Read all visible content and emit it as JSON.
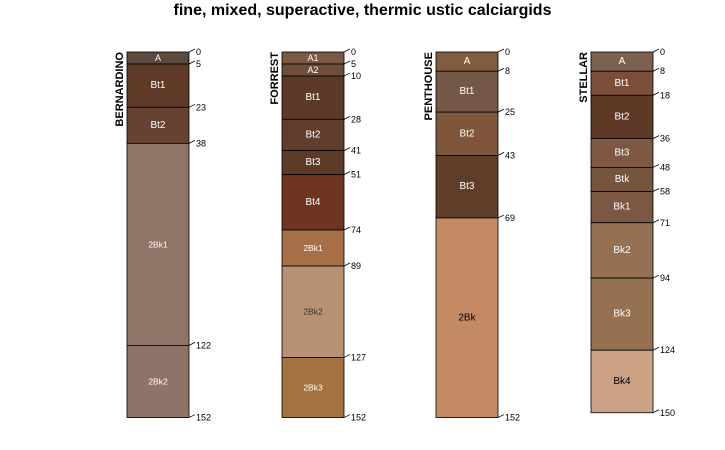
{
  "title": "fine, mixed, superactive, thermic ustic calciargids",
  "profiles": [
    {
      "name": "BERNARDINO",
      "horizons": [
        {
          "name": "A",
          "top": 0,
          "bottom": 5,
          "color": "#5B4A3E",
          "text_color": "#ffffff"
        },
        {
          "name": "Bt1",
          "top": 5,
          "bottom": 23,
          "color": "#5E3A27",
          "text_color": "#ffffff"
        },
        {
          "name": "Bt2",
          "top": 23,
          "bottom": 38,
          "color": "#654232",
          "text_color": "#ffffff"
        },
        {
          "name": "2Bk1",
          "top": 38,
          "bottom": 122,
          "color": "#907467",
          "text_color": "#ffffff"
        },
        {
          "name": "2Bk2",
          "top": 122,
          "bottom": 152,
          "color": "#8E7468",
          "text_color": "#ffffff"
        }
      ],
      "depth_labels": [
        "0",
        "5",
        "23",
        "38",
        "122",
        "152"
      ]
    },
    {
      "name": "FORREST",
      "horizons": [
        {
          "name": "A1",
          "top": 0,
          "bottom": 5,
          "color": "#7A5A44",
          "text_color": "#ffffff"
        },
        {
          "name": "A2",
          "top": 5,
          "bottom": 10,
          "color": "#6E4E3A",
          "text_color": "#ffffff"
        },
        {
          "name": "Bt1",
          "top": 10,
          "bottom": 28,
          "color": "#5C3A27",
          "text_color": "#ffffff"
        },
        {
          "name": "Bt2",
          "top": 28,
          "bottom": 41,
          "color": "#603E2B",
          "text_color": "#ffffff"
        },
        {
          "name": "Bt3",
          "top": 41,
          "bottom": 51,
          "color": "#5E3B28",
          "text_color": "#ffffff"
        },
        {
          "name": "Bt4",
          "top": 51,
          "bottom": 74,
          "color": "#6E3521",
          "text_color": "#ffffff"
        },
        {
          "name": "2Bk1",
          "top": 74,
          "bottom": 89,
          "color": "#A66F47",
          "text_color": "#ffffff"
        },
        {
          "name": "2Bk2",
          "top": 89,
          "bottom": 127,
          "color": "#B69273",
          "text_color": "#333333"
        },
        {
          "name": "2Bk3",
          "top": 127,
          "bottom": 152,
          "color": "#A4733F",
          "text_color": "#ffffff"
        }
      ],
      "depth_labels": [
        "0",
        "5",
        "10",
        "28",
        "41",
        "51",
        "74",
        "89",
        "127",
        "152"
      ]
    },
    {
      "name": "PENTHOUSE",
      "horizons": [
        {
          "name": "A",
          "top": 0,
          "bottom": 8,
          "color": "#825C3E",
          "text_color": "#ffffff"
        },
        {
          "name": "Bt1",
          "top": 8,
          "bottom": 25,
          "color": "#755747",
          "text_color": "#ffffff"
        },
        {
          "name": "Bt2",
          "top": 25,
          "bottom": 43,
          "color": "#7F563C",
          "text_color": "#ffffff"
        },
        {
          "name": "Bt3",
          "top": 43,
          "bottom": 69,
          "color": "#603D29",
          "text_color": "#ffffff"
        },
        {
          "name": "2Bk",
          "top": 69,
          "bottom": 152,
          "color": "#C48A63",
          "text_color": "#000000"
        }
      ],
      "depth_labels": [
        "0",
        "8",
        "25",
        "43",
        "69",
        "152"
      ]
    },
    {
      "name": "STELLAR",
      "horizons": [
        {
          "name": "A",
          "top": 0,
          "bottom": 8,
          "color": "#7C6150",
          "text_color": "#ffffff"
        },
        {
          "name": "Bt1",
          "top": 8,
          "bottom": 18,
          "color": "#7A4E39",
          "text_color": "#ffffff"
        },
        {
          "name": "Bt2",
          "top": 18,
          "bottom": 36,
          "color": "#5E3A26",
          "text_color": "#ffffff"
        },
        {
          "name": "Bt3",
          "top": 36,
          "bottom": 48,
          "color": "#7E5843",
          "text_color": "#ffffff"
        },
        {
          "name": "Btk",
          "top": 48,
          "bottom": 58,
          "color": "#755440",
          "text_color": "#ffffff"
        },
        {
          "name": "Bk1",
          "top": 58,
          "bottom": 71,
          "color": "#7C5744",
          "text_color": "#ffffff"
        },
        {
          "name": "Bk2",
          "top": 71,
          "bottom": 94,
          "color": "#957052",
          "text_color": "#ffffff"
        },
        {
          "name": "Bk3",
          "top": 94,
          "bottom": 124,
          "color": "#957151",
          "text_color": "#ffffff"
        },
        {
          "name": "Bk4",
          "top": 124,
          "bottom": 150,
          "color": "#CBA283",
          "text_color": "#000000"
        }
      ],
      "depth_labels": [
        "0",
        "8",
        "18",
        "36",
        "48",
        "58",
        "71",
        "94",
        "124",
        "150"
      ]
    }
  ]
}
